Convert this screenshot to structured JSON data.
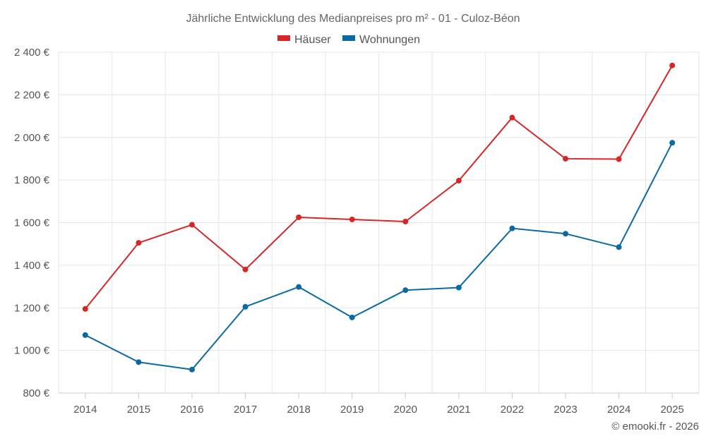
{
  "chart_data": {
    "type": "line",
    "title": "Jährliche Entwicklung des Medianpreises pro m² - 01 - Culoz-Béon",
    "categories": [
      "2014",
      "2015",
      "2016",
      "2017",
      "2018",
      "2019",
      "2020",
      "2021",
      "2022",
      "2023",
      "2024",
      "2025"
    ],
    "series": [
      {
        "name": "Häuser",
        "color": "#d62728",
        "values": [
          1195,
          1505,
          1590,
          1380,
          1625,
          1615,
          1605,
          1797,
          2093,
          1900,
          1898,
          2338
        ]
      },
      {
        "name": "Wohnungen",
        "color": "#0a6aa1",
        "values": [
          1072,
          945,
          910,
          1205,
          1298,
          1155,
          1283,
          1295,
          1573,
          1548,
          1485,
          1975
        ]
      }
    ],
    "ylim": [
      800,
      2400
    ],
    "yticks": [
      800,
      1000,
      1200,
      1400,
      1600,
      1800,
      2000,
      2200,
      2400
    ],
    "ytick_labels": [
      "800 €",
      "1 000 €",
      "1 200 €",
      "1 400 €",
      "1 600 €",
      "1 800 €",
      "2 000 €",
      "2 200 €",
      "2 400 €"
    ],
    "xlabel": "",
    "ylabel": "",
    "grid": true,
    "legend": "top-center"
  },
  "credit": "© emooki.fr - 2026"
}
